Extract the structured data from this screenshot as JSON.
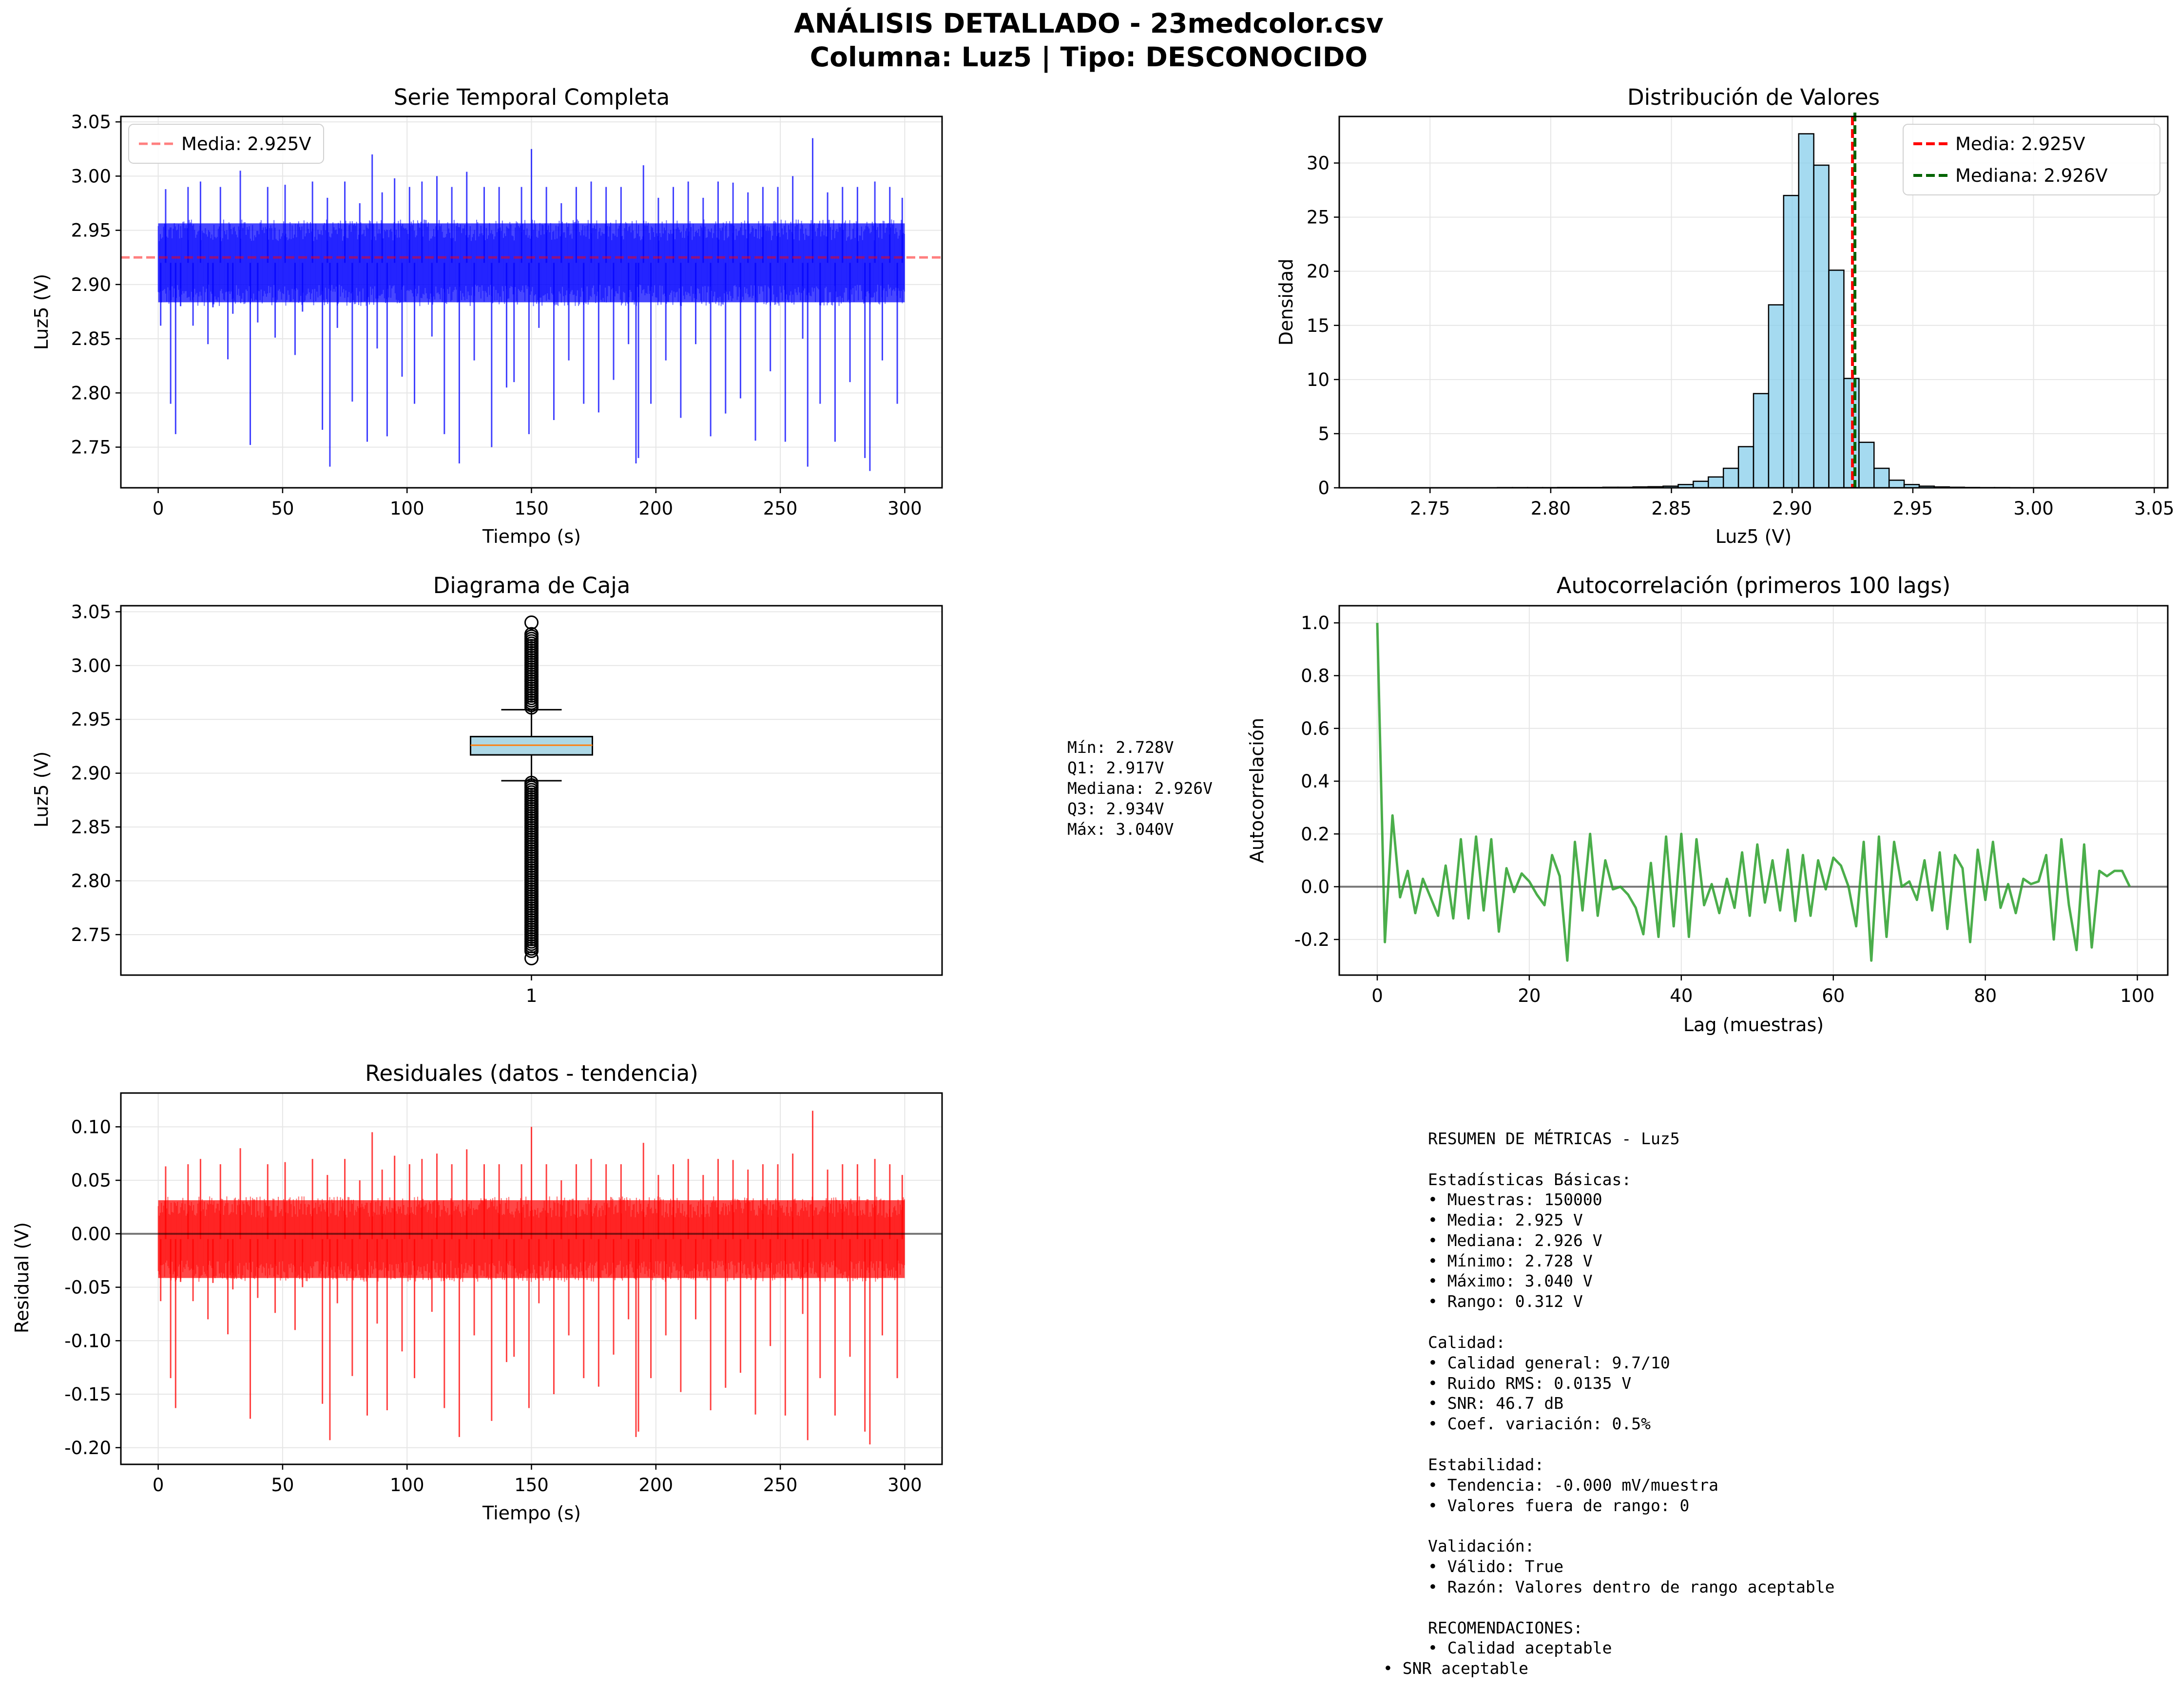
{
  "page": {
    "title_line1": "ANÁLISIS DETALLADO - 23medcolor.csv",
    "title_line2": "Columna: Luz5 | Tipo: DESCONOCIDO"
  },
  "colors": {
    "series_blue": "#0000ff",
    "mean_line": "#ff0000",
    "median_line": "#006400",
    "hist_fill": "#87ceeb",
    "box_fill": "#add8e6",
    "box_median": "#ff7f0e",
    "acf_line": "#2ca02c",
    "residual_red": "#ff0000",
    "grid": "#e6e6e6"
  },
  "chart_data": [
    {
      "id": "time-series",
      "type": "line",
      "title": "Serie Temporal Completa",
      "xlabel": "Tiempo (s)",
      "ylabel": "Luz5 (V)",
      "xlim": [
        -15,
        315
      ],
      "ylim": [
        2.7125,
        3.055
      ],
      "xticks": [
        0,
        50,
        100,
        150,
        200,
        250,
        300
      ],
      "yticks": [
        2.75,
        2.8,
        2.85,
        2.9,
        2.95,
        3.0,
        3.05
      ],
      "x_range": [
        0,
        300
      ],
      "band": [
        2.88,
        2.96
      ],
      "mean": 2.925,
      "legend": [
        "Media: 2.925V"
      ],
      "legend_position": "upper left",
      "grid": true,
      "spikes": [
        [
          1,
          2.862
        ],
        [
          3,
          2.988
        ],
        [
          5,
          2.79
        ],
        [
          7,
          2.762
        ],
        [
          9,
          2.88
        ],
        [
          12,
          2.99
        ],
        [
          14,
          2.862
        ],
        [
          17,
          2.995
        ],
        [
          20,
          2.845
        ],
        [
          22,
          2.879
        ],
        [
          25,
          2.99
        ],
        [
          28,
          2.831
        ],
        [
          30,
          2.873
        ],
        [
          33,
          3.005
        ],
        [
          37,
          2.752
        ],
        [
          40,
          2.865
        ],
        [
          44,
          2.99
        ],
        [
          47,
          2.851
        ],
        [
          51,
          2.992
        ],
        [
          55,
          2.835
        ],
        [
          58,
          2.875
        ],
        [
          62,
          2.995
        ],
        [
          66,
          2.766
        ],
        [
          68,
          2.98
        ],
        [
          69,
          2.732
        ],
        [
          72,
          2.86
        ],
        [
          75,
          2.995
        ],
        [
          78,
          2.792
        ],
        [
          81,
          2.975
        ],
        [
          84,
          2.755
        ],
        [
          86,
          3.02
        ],
        [
          88,
          2.841
        ],
        [
          90,
          2.985
        ],
        [
          92,
          2.76
        ],
        [
          95,
          2.998
        ],
        [
          98,
          2.815
        ],
        [
          101,
          2.99
        ],
        [
          103,
          2.79
        ],
        [
          106,
          2.995
        ],
        [
          110,
          2.852
        ],
        [
          112,
          3.0
        ],
        [
          115,
          2.762
        ],
        [
          118,
          2.99
        ],
        [
          121,
          2.735
        ],
        [
          124,
          3.004
        ],
        [
          127,
          2.83
        ],
        [
          131,
          2.99
        ],
        [
          134,
          2.75
        ],
        [
          137,
          2.99
        ],
        [
          140,
          2.805
        ],
        [
          143,
          2.81
        ],
        [
          146,
          2.99
        ],
        [
          149,
          2.762
        ],
        [
          150,
          3.025
        ],
        [
          153,
          2.86
        ],
        [
          156,
          2.99
        ],
        [
          159,
          2.775
        ],
        [
          162,
          2.975
        ],
        [
          165,
          2.83
        ],
        [
          168,
          2.99
        ],
        [
          171,
          2.79
        ],
        [
          174,
          2.995
        ],
        [
          177,
          2.782
        ],
        [
          180,
          2.99
        ],
        [
          183,
          2.812
        ],
        [
          186,
          2.99
        ],
        [
          189,
          2.845
        ],
        [
          192,
          2.735
        ],
        [
          193,
          2.74
        ],
        [
          195,
          3.01
        ],
        [
          198,
          2.79
        ],
        [
          201,
          2.98
        ],
        [
          204,
          2.83
        ],
        [
          207,
          2.99
        ],
        [
          210,
          2.777
        ],
        [
          213,
          2.995
        ],
        [
          216,
          2.845
        ],
        [
          219,
          2.98
        ],
        [
          222,
          2.76
        ],
        [
          225,
          2.995
        ],
        [
          228,
          2.781
        ],
        [
          231,
          2.994
        ],
        [
          234,
          2.795
        ],
        [
          237,
          2.985
        ],
        [
          240,
          2.756
        ],
        [
          243,
          2.99
        ],
        [
          246,
          2.82
        ],
        [
          249,
          2.99
        ],
        [
          252,
          2.755
        ],
        [
          255,
          3.0
        ],
        [
          259,
          2.85
        ],
        [
          261,
          2.732
        ],
        [
          263,
          3.035
        ],
        [
          266,
          2.79
        ],
        [
          269,
          2.985
        ],
        [
          272,
          2.755
        ],
        [
          275,
          2.99
        ],
        [
          278,
          2.81
        ],
        [
          281,
          2.99
        ],
        [
          284,
          2.74
        ],
        [
          286,
          2.728
        ],
        [
          288,
          2.995
        ],
        [
          291,
          2.83
        ],
        [
          294,
          2.99
        ],
        [
          297,
          2.79
        ],
        [
          299,
          2.98
        ]
      ]
    },
    {
      "id": "histogram",
      "type": "bar",
      "title": "Distribución de Valores",
      "xlabel": "Luz5 (V)",
      "ylabel": "Densidad",
      "xlim": [
        2.7124,
        3.0556
      ],
      "ylim": [
        0,
        34.3
      ],
      "xticks": [
        2.75,
        2.8,
        2.85,
        2.9,
        2.95,
        3.0,
        3.05
      ],
      "yticks": [
        0,
        5,
        10,
        15,
        20,
        25,
        30
      ],
      "bins": {
        "start": 2.728,
        "width": 0.00624
      },
      "values": [
        0.01,
        0.01,
        0.01,
        0.01,
        0.01,
        0.01,
        0.01,
        0.01,
        0.02,
        0.02,
        0.02,
        0.02,
        0.03,
        0.03,
        0.03,
        0.05,
        0.05,
        0.08,
        0.1,
        0.15,
        0.3,
        0.6,
        1.0,
        1.8,
        3.8,
        8.7,
        16.9,
        27.0,
        32.7,
        29.8,
        20.1,
        10.1,
        4.2,
        1.8,
        0.7,
        0.3,
        0.15,
        0.08,
        0.05,
        0.03,
        0.02,
        0.02,
        0.01,
        0.01,
        0.01,
        0.01,
        0.01,
        0.01,
        0.01,
        0.01
      ],
      "mean": 2.925,
      "median": 2.926,
      "legend": [
        "Media: 2.925V",
        "Mediana: 2.926V"
      ],
      "legend_position": "upper right",
      "grid": true
    },
    {
      "id": "boxplot",
      "type": "box",
      "title": "Diagrama de Caja",
      "ylabel": "Luz5 (V)",
      "xticklabels": [
        "1"
      ],
      "ylim": [
        2.7124,
        3.0556
      ],
      "yticks": [
        2.75,
        2.8,
        2.85,
        2.9,
        2.95,
        3.0,
        3.05
      ],
      "stats": {
        "min": 2.728,
        "q1": 2.917,
        "median": 2.926,
        "q3": 2.934,
        "max": 3.04,
        "whisker_low": 2.893,
        "whisker_high": 2.959
      },
      "grid": true
    },
    {
      "id": "autocorrelation",
      "type": "line",
      "title": "Autocorrelación (primeros 100 lags)",
      "xlabel": "Lag (muestras)",
      "ylabel": "Autocorrelación",
      "xlim": [
        -5,
        104
      ],
      "ylim": [
        -0.335,
        1.065
      ],
      "xticks": [
        0,
        20,
        40,
        60,
        80,
        100
      ],
      "yticks": [
        -0.2,
        0.0,
        0.2,
        0.4,
        0.6,
        0.8,
        1.0
      ],
      "values": [
        1.0,
        -0.21,
        0.27,
        -0.04,
        0.06,
        -0.1,
        0.03,
        -0.04,
        -0.11,
        0.08,
        -0.12,
        0.18,
        -0.12,
        0.19,
        -0.09,
        0.18,
        -0.17,
        0.07,
        -0.02,
        0.05,
        0.02,
        -0.03,
        -0.07,
        0.12,
        0.04,
        -0.28,
        0.17,
        -0.09,
        0.2,
        -0.11,
        0.1,
        -0.01,
        0.0,
        -0.03,
        -0.08,
        -0.18,
        0.09,
        -0.19,
        0.19,
        -0.15,
        0.2,
        -0.19,
        0.18,
        -0.07,
        0.01,
        -0.1,
        0.03,
        -0.08,
        0.13,
        -0.11,
        0.16,
        -0.06,
        0.1,
        -0.09,
        0.14,
        -0.13,
        0.12,
        -0.11,
        0.1,
        -0.01,
        0.11,
        0.08,
        0.0,
        -0.15,
        0.17,
        -0.28,
        0.19,
        -0.19,
        0.17,
        0.0,
        0.02,
        -0.05,
        0.1,
        -0.09,
        0.13,
        -0.16,
        0.12,
        0.07,
        -0.21,
        0.14,
        -0.05,
        0.17,
        -0.08,
        0.01,
        -0.1,
        0.03,
        0.01,
        0.02,
        0.12,
        -0.2,
        0.18,
        -0.07,
        -0.24,
        0.16,
        -0.23,
        0.06,
        0.04,
        0.06,
        0.06,
        0.0
      ],
      "grid": true
    },
    {
      "id": "residuals",
      "type": "line",
      "title": "Residuales (datos - tendencia)",
      "xlabel": "Tiempo (s)",
      "ylabel": "Residual (V)",
      "xlim": [
        -15,
        315
      ],
      "ylim": [
        -0.2156,
        0.1316
      ],
      "xticks": [
        0,
        50,
        100,
        150,
        200,
        250,
        300
      ],
      "yticks": [
        -0.2,
        -0.15,
        -0.1,
        -0.05,
        0.0,
        0.05,
        0.1
      ],
      "x_range": [
        0,
        300
      ],
      "band": [
        -0.045,
        0.035
      ],
      "grid": true,
      "spikes": [
        [
          1,
          -0.063
        ],
        [
          3,
          0.063
        ],
        [
          5,
          -0.135
        ],
        [
          7,
          -0.163
        ],
        [
          9,
          -0.045
        ],
        [
          12,
          0.065
        ],
        [
          14,
          -0.063
        ],
        [
          17,
          0.07
        ],
        [
          20,
          -0.08
        ],
        [
          22,
          -0.046
        ],
        [
          25,
          0.065
        ],
        [
          28,
          -0.094
        ],
        [
          30,
          -0.052
        ],
        [
          33,
          0.08
        ],
        [
          37,
          -0.173
        ],
        [
          40,
          -0.06
        ],
        [
          44,
          0.065
        ],
        [
          47,
          -0.074
        ],
        [
          51,
          0.067
        ],
        [
          55,
          -0.09
        ],
        [
          58,
          -0.05
        ],
        [
          62,
          0.07
        ],
        [
          66,
          -0.159
        ],
        [
          68,
          0.055
        ],
        [
          69,
          -0.193
        ],
        [
          72,
          -0.065
        ],
        [
          75,
          0.07
        ],
        [
          78,
          -0.133
        ],
        [
          81,
          0.05
        ],
        [
          84,
          -0.17
        ],
        [
          86,
          0.095
        ],
        [
          88,
          -0.084
        ],
        [
          90,
          0.06
        ],
        [
          92,
          -0.165
        ],
        [
          95,
          0.073
        ],
        [
          98,
          -0.11
        ],
        [
          101,
          0.065
        ],
        [
          103,
          -0.135
        ],
        [
          106,
          0.07
        ],
        [
          110,
          -0.073
        ],
        [
          112,
          0.075
        ],
        [
          115,
          -0.163
        ],
        [
          118,
          0.065
        ],
        [
          121,
          -0.19
        ],
        [
          124,
          0.079
        ],
        [
          127,
          -0.095
        ],
        [
          131,
          0.065
        ],
        [
          134,
          -0.175
        ],
        [
          137,
          0.065
        ],
        [
          140,
          -0.12
        ],
        [
          143,
          -0.115
        ],
        [
          146,
          0.065
        ],
        [
          149,
          -0.163
        ],
        [
          150,
          0.1
        ],
        [
          153,
          -0.065
        ],
        [
          156,
          0.065
        ],
        [
          159,
          -0.15
        ],
        [
          162,
          0.05
        ],
        [
          165,
          -0.095
        ],
        [
          168,
          0.065
        ],
        [
          171,
          -0.135
        ],
        [
          174,
          0.07
        ],
        [
          177,
          -0.143
        ],
        [
          180,
          0.065
        ],
        [
          183,
          -0.113
        ],
        [
          186,
          0.065
        ],
        [
          189,
          -0.08
        ],
        [
          192,
          -0.19
        ],
        [
          193,
          -0.185
        ],
        [
          195,
          0.085
        ],
        [
          198,
          -0.135
        ],
        [
          201,
          0.055
        ],
        [
          204,
          -0.095
        ],
        [
          207,
          0.065
        ],
        [
          210,
          -0.148
        ],
        [
          213,
          0.07
        ],
        [
          216,
          -0.08
        ],
        [
          219,
          0.055
        ],
        [
          222,
          -0.165
        ],
        [
          225,
          0.07
        ],
        [
          228,
          -0.144
        ],
        [
          231,
          0.069
        ],
        [
          234,
          -0.13
        ],
        [
          237,
          0.06
        ],
        [
          240,
          -0.169
        ],
        [
          243,
          0.065
        ],
        [
          246,
          -0.105
        ],
        [
          249,
          0.065
        ],
        [
          252,
          -0.17
        ],
        [
          255,
          0.075
        ],
        [
          259,
          -0.075
        ],
        [
          261,
          -0.193
        ],
        [
          263,
          0.115
        ],
        [
          266,
          -0.135
        ],
        [
          269,
          0.06
        ],
        [
          272,
          -0.17
        ],
        [
          275,
          0.065
        ],
        [
          278,
          -0.115
        ],
        [
          281,
          0.065
        ],
        [
          284,
          -0.185
        ],
        [
          286,
          -0.197
        ],
        [
          288,
          0.07
        ],
        [
          291,
          -0.095
        ],
        [
          294,
          0.065
        ],
        [
          297,
          -0.135
        ],
        [
          299,
          0.055
        ]
      ]
    }
  ],
  "box_stats_text": {
    "min": "Mín: 2.728V",
    "q1": "Q1: 2.917V",
    "median": "Mediana: 2.926V",
    "q3": "Q3: 2.934V",
    "max": "Máx: 3.040V"
  },
  "summary": {
    "title": "RESUMEN DE MÉTRICAS - Luz5",
    "basic_heading": "Estadísticas Básicas:",
    "basic": [
      "• Muestras: 150000",
      "• Media: 2.925 V",
      "• Mediana: 2.926 V",
      "• Mínimo: 2.728 V",
      "• Máximo: 3.040 V",
      "• Rango: 0.312 V"
    ],
    "quality_heading": "Calidad:",
    "quality": [
      "• Calidad general: 9.7/10",
      "• Ruido RMS: 0.0135 V",
      "• SNR: 46.7 dB",
      "• Coef. variación: 0.5%"
    ],
    "stability_heading": "Estabilidad:",
    "stability": [
      "• Tendencia: -0.000 mV/muestra",
      "• Valores fuera de rango: 0"
    ],
    "validation_heading": "Validación:",
    "validation": [
      "• Válido: True",
      "• Razón: Valores dentro de rango aceptable"
    ],
    "recommendations_heading": "RECOMENDACIONES:",
    "recommendations": [
      "• Calidad aceptable",
      "• SNR aceptable"
    ]
  }
}
